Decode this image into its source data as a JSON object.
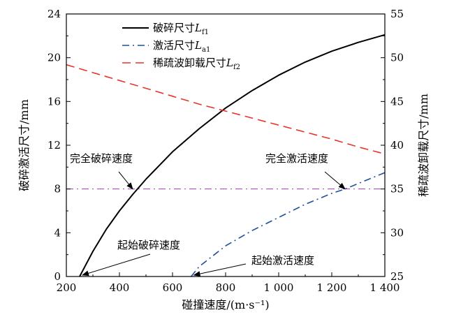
{
  "chart_data": {
    "type": "line",
    "xlabel": "碰撞速度/(m·s⁻¹)",
    "ylabel_left": "破碎激活尺寸/mm",
    "ylabel_right": "稀疏波卸载尺寸/mm",
    "x_ticks": [
      "200",
      "400",
      "600",
      "800",
      "1 000",
      "1 200",
      "1 400"
    ],
    "y_left_ticks": [
      "0",
      "4",
      "8",
      "12",
      "16",
      "20",
      "24"
    ],
    "y_right_ticks": [
      "25",
      "30",
      "35",
      "40",
      "45",
      "50",
      "55"
    ],
    "xlim": [
      200,
      1400
    ],
    "ylim_left": [
      0,
      24
    ],
    "ylim_right": [
      25,
      55
    ],
    "legend": {
      "placement": "top-center",
      "entries": [
        {
          "text": "破碎尺寸",
          "sym": "L",
          "sub": "f1",
          "style": "solid",
          "color": "#000000"
        },
        {
          "text": "激活尺寸",
          "sym": "L",
          "sub": "a1",
          "style": "dashdot",
          "color": "#1f4e9c"
        },
        {
          "text": "稀疏波卸载尺寸",
          "sym": "L",
          "sub": "f2",
          "style": "dashed",
          "color": "#e8342a"
        }
      ]
    },
    "series": [
      {
        "name": "破碎尺寸Lf1",
        "axis": "left",
        "color": "#000000",
        "style": "solid",
        "x": [
          250,
          300,
          350,
          400,
          450,
          500,
          600,
          700,
          800,
          900,
          1000,
          1100,
          1200,
          1300,
          1400
        ],
        "y": [
          0.0,
          2.3,
          4.3,
          6.0,
          7.5,
          8.9,
          11.4,
          13.5,
          15.4,
          17.0,
          18.4,
          19.6,
          20.6,
          21.4,
          22.1
        ]
      },
      {
        "name": "激活尺寸La1",
        "axis": "left",
        "color": "#1f4e9c",
        "style": "dashdot",
        "x": [
          670,
          700,
          800,
          900,
          1000,
          1100,
          1200,
          1250,
          1300,
          1400
        ],
        "y": [
          0.0,
          0.9,
          2.8,
          4.2,
          5.4,
          6.6,
          7.6,
          8.0,
          8.5,
          9.5
        ]
      },
      {
        "name": "稀疏波卸载尺寸Lf2",
        "axis": "right",
        "color": "#e8342a",
        "style": "dashed",
        "x": [
          200,
          300,
          400,
          500,
          600,
          700,
          800,
          900,
          1000,
          1100,
          1200,
          1300,
          1400
        ],
        "y": [
          49.2,
          48.3,
          47.4,
          46.5,
          45.6,
          44.7,
          43.9,
          43.1,
          42.3,
          41.5,
          40.7,
          39.8,
          39.0
        ]
      }
    ],
    "reference_line": {
      "axis": "left",
      "y": 8,
      "color": "#9b3bb0",
      "style": "dashdot"
    },
    "annotations": [
      {
        "text": "完全破碎速度",
        "point": [
          450,
          8
        ]
      },
      {
        "text": "完全激活速度",
        "point": [
          1250,
          8
        ]
      },
      {
        "text": "起始破碎速度",
        "point": [
          250,
          0
        ]
      },
      {
        "text": "起始激活速度",
        "point": [
          670,
          0
        ]
      }
    ]
  }
}
